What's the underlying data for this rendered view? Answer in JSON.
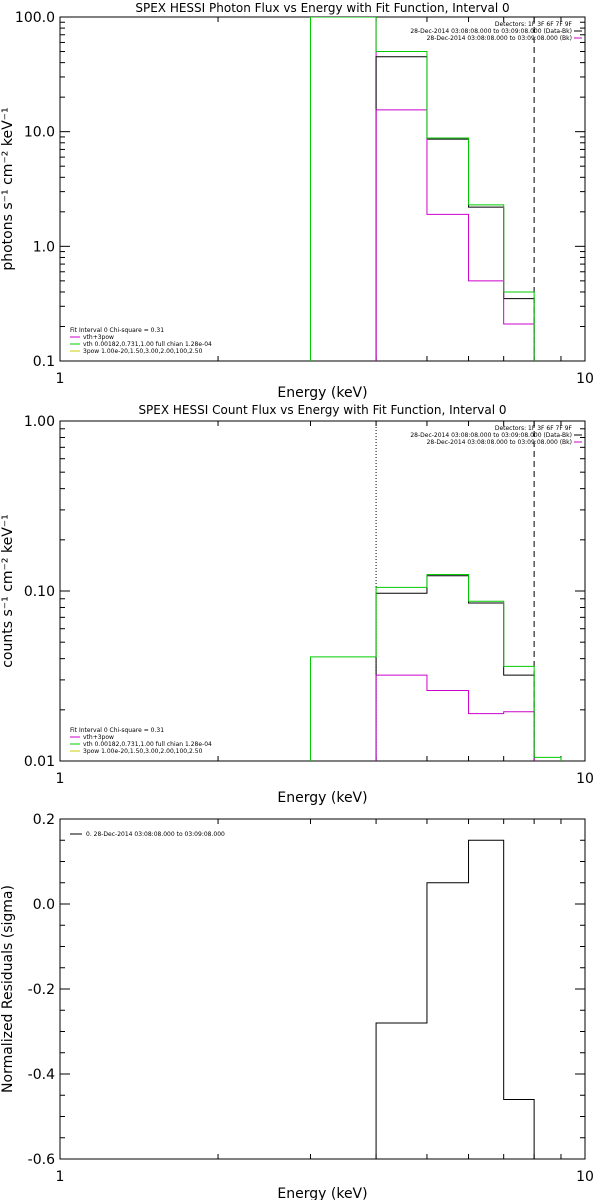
{
  "chart_data": [
    {
      "type": "line",
      "title": "SPEX HESSI Photon Flux vs Energy with Fit Function, Interval 0",
      "xlabel": "Energy (keV)",
      "ylabel": "photons s⁻¹ cm⁻² keV⁻¹",
      "xscale": "log",
      "yscale": "log",
      "xlim": [
        1,
        10
      ],
      "ylim": [
        0.1,
        100
      ],
      "xticks": [
        1,
        10
      ],
      "xtick_labels": [
        "1",
        "10"
      ],
      "yticks": [
        0.1,
        1,
        10,
        100
      ],
      "ytick_labels": [
        "0.1",
        "1.0",
        "10.0",
        "100.0"
      ],
      "legend_top_right": [
        {
          "text": "Detectors: 1F 3F 6F 7F 9F",
          "color": "#000000"
        },
        {
          "text": "28-Dec-2014 03:08:08.000 to 03:09:08.000 (Data-Bk)",
          "color": "#000000"
        },
        {
          "text": "28-Dec-2014 03:08:08.000 to 03:09:08.000 (Bk)",
          "color": "#cc00cc"
        }
      ],
      "legend_bottom_left": [
        {
          "text": "Fit Interval 0  Chi-square = 0.31",
          "color": "#000000"
        },
        {
          "text": "vth+3pow",
          "color": "#cc00cc"
        },
        {
          "text": "vth 0.00182,0.731,1.00  full chian 1.28e-04",
          "color": "#00cc00"
        },
        {
          "text": "3pow 1.00e-20,1.50,3.00,2.00,100,2.50",
          "color": "#cccc00"
        }
      ],
      "series": [
        {
          "name": "28-Dec-2014 03:08:08.000 to 03:09:08.000 (Data-Bk)",
          "color": "#000000",
          "style": "step",
          "x": [
            4.0,
            5.0,
            6.0,
            7.0,
            8.0
          ],
          "y": [
            45,
            8.6,
            2.2,
            0.35,
            0.35
          ]
        },
        {
          "name": "28-Dec-2014 03:08:08.000 to 03:09:08.000 (Bk)",
          "color": "#cc00cc",
          "style": "step",
          "x": [
            4.0,
            5.0,
            6.0,
            7.0,
            8.0
          ],
          "y": [
            15.5,
            1.9,
            0.5,
            0.21,
            0.21
          ]
        },
        {
          "name": "vth+3pow",
          "color": "#00cc00",
          "style": "step",
          "x": [
            3.0,
            4.0,
            5.0,
            6.0,
            7.0,
            8.0
          ],
          "y": [
            100,
            50,
            8.8,
            2.3,
            0.4,
            0.4
          ]
        }
      ],
      "vlines": [
        {
          "x": 3.0,
          "color": "#00cc00",
          "style": "solid"
        },
        {
          "x": 4.0,
          "color": "#cc00cc",
          "style": "solid"
        },
        {
          "x": 8.0,
          "color": "#000000",
          "style": "dashed"
        }
      ]
    },
    {
      "type": "line",
      "title": "SPEX HESSI Count Flux vs Energy with Fit Function, Interval 0",
      "xlabel": "Energy (keV)",
      "ylabel": "counts s⁻¹ cm⁻² keV⁻¹",
      "xscale": "log",
      "yscale": "log",
      "xlim": [
        1,
        10
      ],
      "ylim": [
        0.01,
        1
      ],
      "xticks": [
        1,
        10
      ],
      "xtick_labels": [
        "1",
        "10"
      ],
      "yticks": [
        0.01,
        0.1,
        1
      ],
      "ytick_labels": [
        "0.01",
        "0.10",
        "1.00"
      ],
      "legend_top_right": [
        {
          "text": "Detectors: 1F 3F 6F 7F 9F",
          "color": "#000000"
        },
        {
          "text": "28-Dec-2014 03:08:08.000 to 03:09:08.000 (Data-Bk)",
          "color": "#000000"
        },
        {
          "text": "28-Dec-2014 03:08:08.000 to 03:09:08.000 (Bk)",
          "color": "#cc00cc"
        }
      ],
      "legend_bottom_left": [
        {
          "text": "Fit Interval 0  Chi-square = 0.31",
          "color": "#000000"
        },
        {
          "text": "vth+3pow",
          "color": "#cc00cc"
        },
        {
          "text": "vth 0.00182,0.731,1.00  full chian 1.28e-04",
          "color": "#00cc00"
        },
        {
          "text": "3pow 1.00e-20,1.50,3.00,2.00,100,2.50",
          "color": "#cccc00"
        }
      ],
      "series": [
        {
          "name": "28-Dec-2014 03:08:08.000 to 03:09:08.000 (Data-Bk)",
          "color": "#000000",
          "style": "step",
          "x": [
            4.0,
            5.0,
            6.0,
            7.0,
            8.0
          ],
          "y": [
            0.097,
            0.123,
            0.085,
            0.032,
            0.032
          ]
        },
        {
          "name": "28-Dec-2014 03:08:08.000 to 03:09:08.000 (Bk)",
          "color": "#cc00cc",
          "style": "step",
          "x": [
            4.0,
            5.0,
            6.0,
            7.0,
            8.0
          ],
          "y": [
            0.032,
            0.026,
            0.019,
            0.0195,
            0.0195
          ]
        },
        {
          "name": "vth+3pow",
          "color": "#00cc00",
          "style": "step",
          "x": [
            3.0,
            4.0,
            5.0,
            6.0,
            7.0,
            8.0,
            9.0
          ],
          "y": [
            0.041,
            0.105,
            0.125,
            0.087,
            0.036,
            0.0105,
            0.0105
          ]
        }
      ],
      "vlines": [
        {
          "x": 4.0,
          "color": "#000000",
          "style": "dotted"
        },
        {
          "x": 8.0,
          "color": "#000000",
          "style": "dashed"
        }
      ]
    },
    {
      "type": "line",
      "title": "",
      "xlabel": "Energy (keV)",
      "ylabel": "Normalized Residuals (sigma)",
      "xscale": "log",
      "yscale": "linear",
      "xlim": [
        1,
        10
      ],
      "ylim": [
        -0.6,
        0.2
      ],
      "xticks": [
        1,
        10
      ],
      "xtick_labels": [
        "1",
        "10"
      ],
      "yticks": [
        -0.6,
        -0.4,
        -0.2,
        0.0,
        0.2
      ],
      "ytick_labels": [
        "-0.6",
        "-0.4",
        "-0.2",
        "0.0",
        "0.2"
      ],
      "legend_top_left": [
        {
          "text": "0. 28-Dec-2014 03:08:08.000 to 03:09:08.000",
          "color": "#000000"
        }
      ],
      "series": [
        {
          "name": "0. 28-Dec-2014 03:08:08.000 to 03:09:08.000",
          "color": "#000000",
          "style": "step",
          "x": [
            4.0,
            5.0,
            6.0,
            7.0,
            8.0
          ],
          "y": [
            -0.28,
            0.05,
            0.15,
            -0.46,
            -0.46
          ]
        }
      ]
    }
  ]
}
